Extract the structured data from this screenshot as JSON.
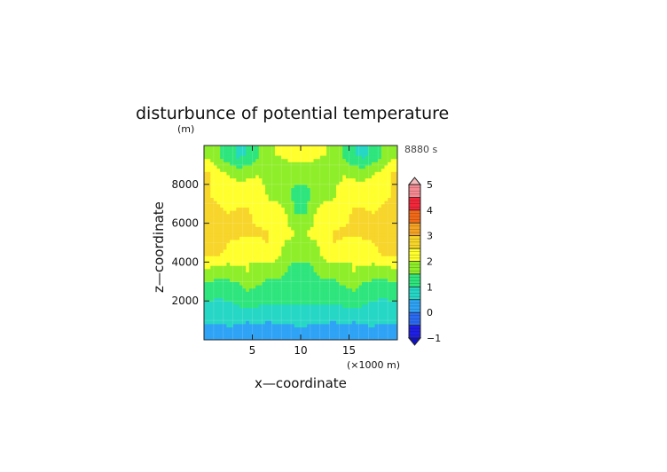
{
  "chart_data": {
    "type": "heatmap",
    "title": "disturbunce of potential temperature",
    "time_label": "8880 s",
    "xlabel": "x—coordinate",
    "ylabel": "z—coordinate",
    "y_unit_label": "(m)",
    "x_unit_label": "(×1000 m)",
    "xlim": [
      0,
      20
    ],
    "ylim": [
      0,
      10000
    ],
    "x_ticks": [
      5,
      10,
      15
    ],
    "x_tick_labels": [
      "5",
      "10",
      "15"
    ],
    "y_ticks": [
      2000,
      4000,
      6000,
      8000
    ],
    "y_tick_labels": [
      "2000",
      "4000",
      "6000",
      "8000"
    ],
    "colorbar": {
      "min": -1,
      "max": 5,
      "step": 0.5,
      "tick_values": [
        -1,
        0,
        1,
        2,
        3,
        4,
        5
      ],
      "tick_labels": [
        "−1",
        "0",
        "1",
        "2",
        "3",
        "4",
        "5"
      ],
      "colors": [
        "#1f1fe6",
        "#2b6bf2",
        "#2fa3f5",
        "#27d7c6",
        "#2fe57d",
        "#8fee2a",
        "#ffff2e",
        "#f7d52a",
        "#f5a324",
        "#f26a18",
        "#f2273a",
        "#f58a92"
      ],
      "over_color": "#f5bcbe",
      "under_color": "#1010c8"
    },
    "field": {
      "nx": 20,
      "nz": 10,
      "x_centers_km": [
        0.5,
        1.5,
        2.5,
        3.5,
        4.5,
        5.5,
        6.5,
        7.5,
        8.5,
        9.5,
        10.5,
        11.5,
        12.5,
        13.5,
        14.5,
        15.5,
        16.5,
        17.5,
        18.5,
        19.5
      ],
      "z_centers_m": [
        500,
        1500,
        2500,
        3500,
        4500,
        5500,
        6500,
        7500,
        8500,
        9500
      ],
      "values_by_row_top_down": [
        [
          1.8,
          1.5,
          1.2,
          0.9,
          1.0,
          1.4,
          1.8,
          2.0,
          2.1,
          2.2,
          2.2,
          2.1,
          2.0,
          1.8,
          1.4,
          1.0,
          0.9,
          1.2,
          1.5,
          1.8
        ],
        [
          2.6,
          2.2,
          2.0,
          1.9,
          1.9,
          2.0,
          1.8,
          1.6,
          1.6,
          1.7,
          1.7,
          1.6,
          1.6,
          1.8,
          2.0,
          1.9,
          1.9,
          2.0,
          2.2,
          2.6
        ],
        [
          2.5,
          2.4,
          2.2,
          2.2,
          2.3,
          2.3,
          2.0,
          1.8,
          1.7,
          1.3,
          1.3,
          1.7,
          1.8,
          2.0,
          2.3,
          2.3,
          2.2,
          2.2,
          2.4,
          2.5
        ],
        [
          2.6,
          2.6,
          2.5,
          2.6,
          2.6,
          2.3,
          2.0,
          2.3,
          2.0,
          1.5,
          1.5,
          2.0,
          2.3,
          2.0,
          2.3,
          2.6,
          2.6,
          2.5,
          2.6,
          2.6
        ],
        [
          2.6,
          2.6,
          2.6,
          2.6,
          2.6,
          2.6,
          2.6,
          2.3,
          2.1,
          2.0,
          2.0,
          2.1,
          2.3,
          2.6,
          2.6,
          2.6,
          2.6,
          2.6,
          2.6,
          2.6
        ],
        [
          2.6,
          2.6,
          2.4,
          2.2,
          2.0,
          2.1,
          2.4,
          2.2,
          1.8,
          1.9,
          1.9,
          1.8,
          2.2,
          2.4,
          2.1,
          2.0,
          2.2,
          2.4,
          2.6,
          2.6
        ],
        [
          1.8,
          1.7,
          1.7,
          1.9,
          2.0,
          1.9,
          1.7,
          1.6,
          1.5,
          1.1,
          1.1,
          1.5,
          1.6,
          1.7,
          1.9,
          2.0,
          1.9,
          1.7,
          1.7,
          1.8
        ],
        [
          1.2,
          1.1,
          1.1,
          1.2,
          1.5,
          1.3,
          1.2,
          1.3,
          1.3,
          1.2,
          1.2,
          1.3,
          1.3,
          1.2,
          1.3,
          1.5,
          1.2,
          1.1,
          1.1,
          1.2
        ],
        [
          0.8,
          0.8,
          0.9,
          0.9,
          0.9,
          0.9,
          0.9,
          0.8,
          0.8,
          0.9,
          0.9,
          0.8,
          0.8,
          0.9,
          0.9,
          0.9,
          0.9,
          0.9,
          0.8,
          0.8
        ],
        [
          0.3,
          0.3,
          0.4,
          0.3,
          0.2,
          0.3,
          0.2,
          0.3,
          0.3,
          0.4,
          0.4,
          0.3,
          0.3,
          0.2,
          0.3,
          0.2,
          0.3,
          0.4,
          0.3,
          0.3
        ]
      ]
    }
  }
}
